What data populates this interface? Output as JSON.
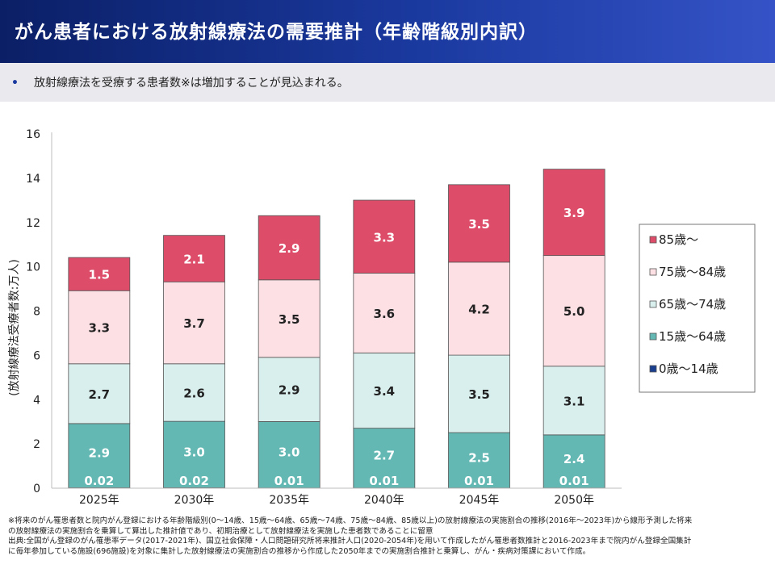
{
  "header": {
    "title": "がん患者における放射線療法の需要推計（年齢階級別内訳）",
    "bullet": "•",
    "subtitle": "放射線療法を受療する患者数※は増加することが見込まれる。"
  },
  "chart_data": {
    "type": "bar",
    "stacked": true,
    "categories": [
      "2025年",
      "2030年",
      "2035年",
      "2040年",
      "2045年",
      "2050年"
    ],
    "ylabel": "(放射線療法受療者数:万人)",
    "ylim": [
      0,
      16
    ],
    "yticks": [
      0,
      2,
      4,
      6,
      8,
      10,
      12,
      14,
      16
    ],
    "grid": false,
    "legend_position": "right",
    "series": [
      {
        "name": "0歳～14歳",
        "color": "#1a3f8f",
        "values": [
          0.02,
          0.02,
          0.01,
          0.01,
          0.01,
          0.01
        ],
        "labels": [
          "0.02",
          "0.02",
          "0.01",
          "0.01",
          "0.01",
          "0.01"
        ],
        "label_color": "#ffffff"
      },
      {
        "name": "15歳～64歳",
        "color": "#64b8b4",
        "values": [
          2.9,
          3.0,
          3.0,
          2.7,
          2.5,
          2.4
        ],
        "labels": [
          "2.9",
          "3.0",
          "3.0",
          "2.7",
          "2.5",
          "2.4"
        ],
        "label_color": "#ffffff"
      },
      {
        "name": "65歳～74歳",
        "color": "#d9efee",
        "values": [
          2.7,
          2.6,
          2.9,
          3.4,
          3.5,
          3.1
        ],
        "labels": [
          "2.7",
          "2.6",
          "2.9",
          "3.4",
          "3.5",
          "3.1"
        ],
        "label_color": "#222222"
      },
      {
        "name": "75歳～84歳",
        "color": "#fde0e4",
        "values": [
          3.3,
          3.7,
          3.5,
          3.6,
          4.2,
          5.0
        ],
        "labels": [
          "3.3",
          "3.7",
          "3.5",
          "3.6",
          "4.2",
          "5.0"
        ],
        "label_color": "#222222"
      },
      {
        "name": "85歳～",
        "color": "#dd4d6a",
        "values": [
          1.5,
          2.1,
          2.9,
          3.3,
          3.5,
          3.9
        ],
        "labels": [
          "1.5",
          "2.1",
          "2.9",
          "3.3",
          "3.5",
          "3.9"
        ],
        "label_color": "#ffffff"
      }
    ]
  },
  "footnotes": {
    "line1": "※将来のがん罹患者数と院内がん登録における年齢階級別(0～14歳、15歳～64歳、65歳～74歳、75歳～84歳、85歳以上)の放射線療法の実施割合の推移(2016年～2023年)から線形予測した将来",
    "line2": "の放射線療法の実施割合を乗算して算出した推計値であり、初期治療として放射線療法を実施した患者数であることに留意",
    "line3": "出典:全国がん登録のがん罹患率データ(2017-2021年)、国立社会保障・人口問題研究所将来推計人口(2020-2054年)を用いて作成したがん罹患者数推計と2016-2023年まで院内がん登録全国集計",
    "line4": "に毎年参加している施設(696施設)を対象に集計した放射線療法の実施割合の推移から作成した2050年までの実施割合推計と乗算し、がん・疾病対策課において作成。"
  }
}
